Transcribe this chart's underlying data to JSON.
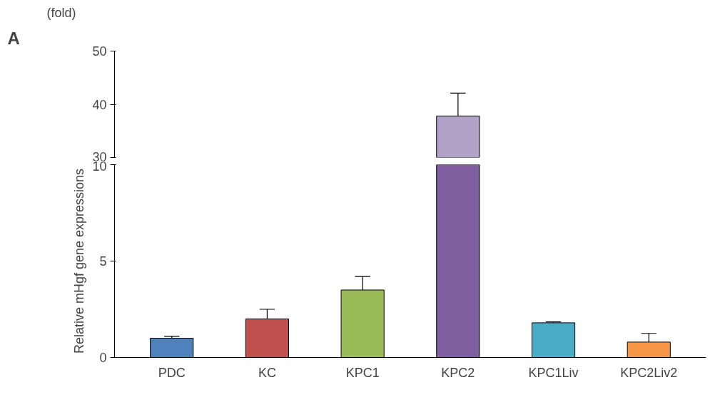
{
  "chart_data": [
    {
      "type": "bar",
      "categories": [
        "PDC",
        "KC",
        "KPC1",
        "KPC2",
        "KPC1Liv",
        "KPC2Liv2"
      ],
      "values": [
        null,
        null,
        null,
        37.8,
        null,
        null
      ],
      "colors": [
        "#4f81bd",
        "#c0504d",
        "#9bbb59",
        "#b3a2c7",
        "#4bacc6",
        "#f79646"
      ],
      "errors": [
        null,
        null,
        null,
        [
          37.8,
          42.1
        ],
        null,
        null
      ],
      "ylim": [
        30,
        50
      ],
      "yticks": [
        30,
        40,
        50
      ],
      "tick_labels": "y",
      "grid": false,
      "annotations": [
        "A",
        "(fold)"
      ]
    },
    {
      "type": "bar",
      "categories": [
        "PDC",
        "KC",
        "KPC1",
        "KPC2",
        "KPC1Liv",
        "KPC2Liv2"
      ],
      "values": [
        1.0,
        2.0,
        3.5,
        10,
        1.8,
        0.8
      ],
      "colors": [
        "#4f81bd",
        "#c0504d",
        "#9bbb59",
        "#7f5fa0",
        "#4bacc6",
        "#f79646"
      ],
      "errors": [
        [
          1.0,
          1.1
        ],
        [
          2.0,
          2.5
        ],
        [
          3.5,
          4.2
        ],
        null,
        [
          1.8,
          1.85
        ],
        [
          0.8,
          1.25
        ]
      ],
      "ylim": [
        0,
        10
      ],
      "yticks": [
        0,
        5,
        10
      ],
      "ylabel": "Relative mHgf gene expressions",
      "grid": false
    }
  ]
}
